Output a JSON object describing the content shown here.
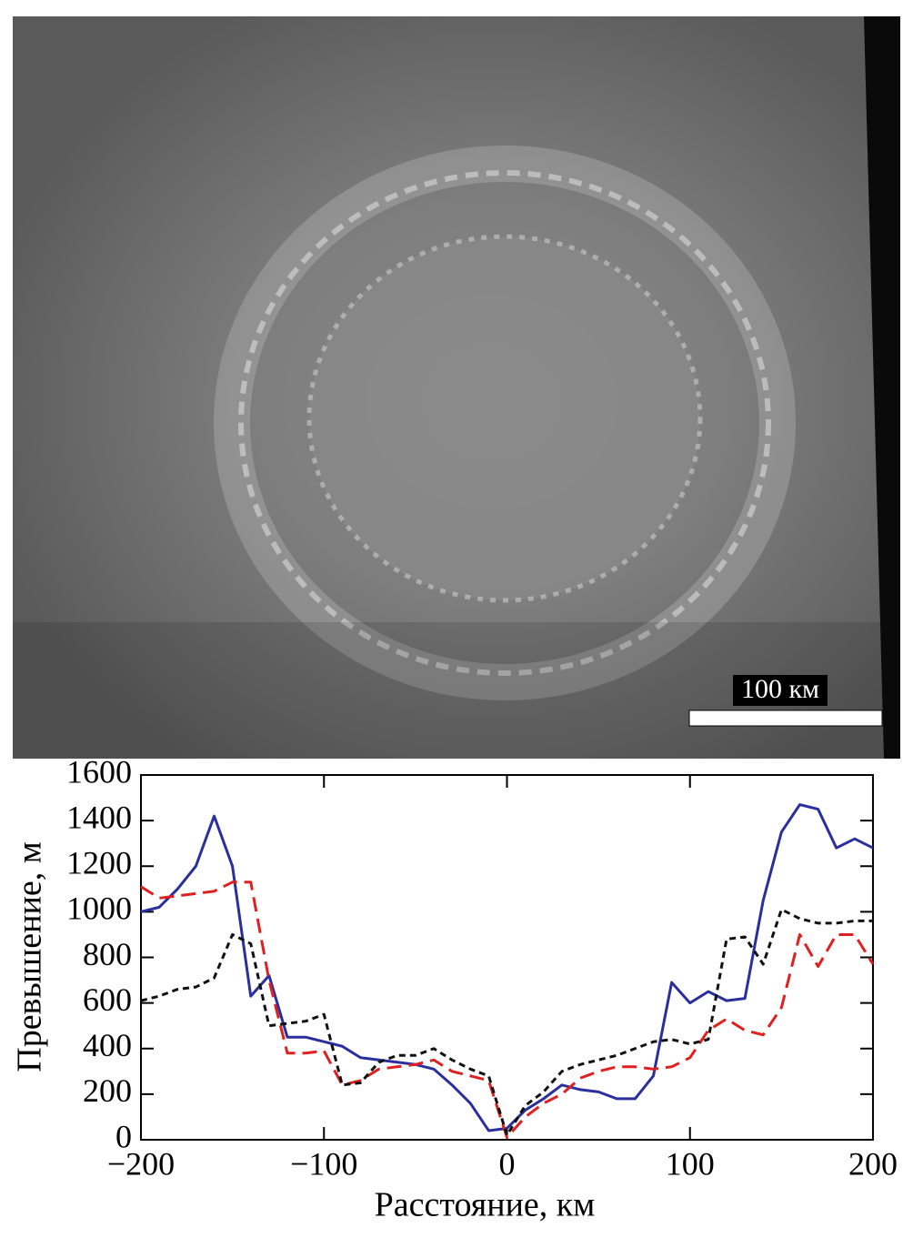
{
  "image": {
    "scale_label": "100 км"
  },
  "chart_data": {
    "type": "line",
    "xlabel": "Расстояние, км",
    "ylabel": "Превышение, м",
    "x": [
      -200,
      -190,
      -180,
      -170,
      -160,
      -150,
      -140,
      -130,
      -120,
      -110,
      -100,
      -90,
      -80,
      -70,
      -60,
      -50,
      -40,
      -30,
      -20,
      -10,
      0,
      10,
      20,
      30,
      40,
      50,
      60,
      70,
      80,
      90,
      100,
      110,
      120,
      130,
      140,
      150,
      160,
      170,
      180,
      190,
      200
    ],
    "series": [
      {
        "color": "#2b2f9e",
        "dash": "solid",
        "values": [
          1000,
          1020,
          1100,
          1200,
          1420,
          1200,
          630,
          720,
          450,
          450,
          430,
          410,
          360,
          350,
          340,
          330,
          310,
          240,
          160,
          40,
          50,
          130,
          180,
          240,
          220,
          210,
          180,
          180,
          280,
          690,
          600,
          650,
          610,
          620,
          1050,
          1350,
          1470,
          1450,
          1280,
          1320,
          1280
        ]
      },
      {
        "color": "#e02020",
        "dash": "dashed",
        "values": [
          1110,
          1060,
          1070,
          1080,
          1090,
          1130,
          1130,
          700,
          380,
          380,
          390,
          240,
          260,
          310,
          320,
          330,
          350,
          300,
          280,
          260,
          10,
          100,
          160,
          200,
          270,
          300,
          320,
          320,
          310,
          320,
          360,
          480,
          530,
          480,
          460,
          580,
          900,
          760,
          900,
          900,
          770
        ]
      },
      {
        "color": "#111111",
        "dash": "dotted",
        "values": [
          610,
          630,
          660,
          670,
          710,
          900,
          860,
          500,
          510,
          520,
          550,
          240,
          250,
          340,
          370,
          370,
          400,
          350,
          310,
          280,
          20,
          150,
          210,
          300,
          330,
          350,
          370,
          400,
          430,
          440,
          420,
          440,
          880,
          890,
          770,
          1010,
          970,
          950,
          950,
          960,
          960
        ]
      }
    ],
    "xlim": [
      -200,
      200
    ],
    "xticks": [
      {
        "value": -200,
        "label": "−200"
      },
      {
        "value": -100,
        "label": "−100"
      },
      0,
      100,
      200
    ],
    "ylim": [
      0,
      1600
    ],
    "yticks": [
      0,
      200,
      400,
      600,
      800,
      1000,
      1200,
      1400,
      1600
    ]
  }
}
